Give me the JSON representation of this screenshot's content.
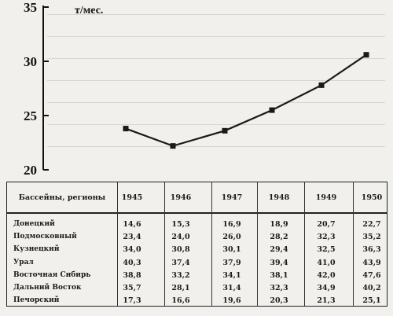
{
  "chart_data": {
    "type": "line",
    "ylabel": "т/мес.",
    "ylim": [
      20,
      35
    ],
    "yticks": [
      20,
      25,
      30,
      35
    ],
    "x": [
      "1945",
      "1946",
      "1947",
      "1948",
      "1949",
      "1950"
    ],
    "values": [
      23.8,
      22.2,
      23.6,
      25.5,
      27.8,
      30.6
    ],
    "grid": false,
    "colors": {
      "line": "#1a1a1a",
      "marker": "#1a1a1a"
    }
  },
  "table": {
    "header": "Бассейны, регионы",
    "years": [
      "1945",
      "1946",
      "1947",
      "1948",
      "1949",
      "1950"
    ],
    "rows": [
      {
        "name": "Донецкий",
        "values": [
          "14,6",
          "15,3",
          "16,9",
          "18,9",
          "20,7",
          "22,7"
        ]
      },
      {
        "name": "Подмосковный",
        "values": [
          "23,4",
          "24,0",
          "26,0",
          "28,2",
          "32,3",
          "35,2"
        ]
      },
      {
        "name": "Кузнецкий",
        "values": [
          "34,0",
          "30,8",
          "30,1",
          "29,4",
          "32,5",
          "36,3"
        ]
      },
      {
        "name": "Урал",
        "values": [
          "40,3",
          "37,4",
          "37,9",
          "39,4",
          "41,0",
          "43,9"
        ]
      },
      {
        "name": "Восточная Сибирь",
        "values": [
          "38,8",
          "33,2",
          "34,1",
          "38,1",
          "42,0",
          "47,6"
        ]
      },
      {
        "name": "Дальний Восток",
        "values": [
          "35,7",
          "28,1",
          "31,4",
          "32,3",
          "34,9",
          "40,2"
        ]
      },
      {
        "name": "Печорский",
        "values": [
          "17,3",
          "16,6",
          "19,6",
          "20,3",
          "21,3",
          "25,1"
        ]
      }
    ]
  }
}
